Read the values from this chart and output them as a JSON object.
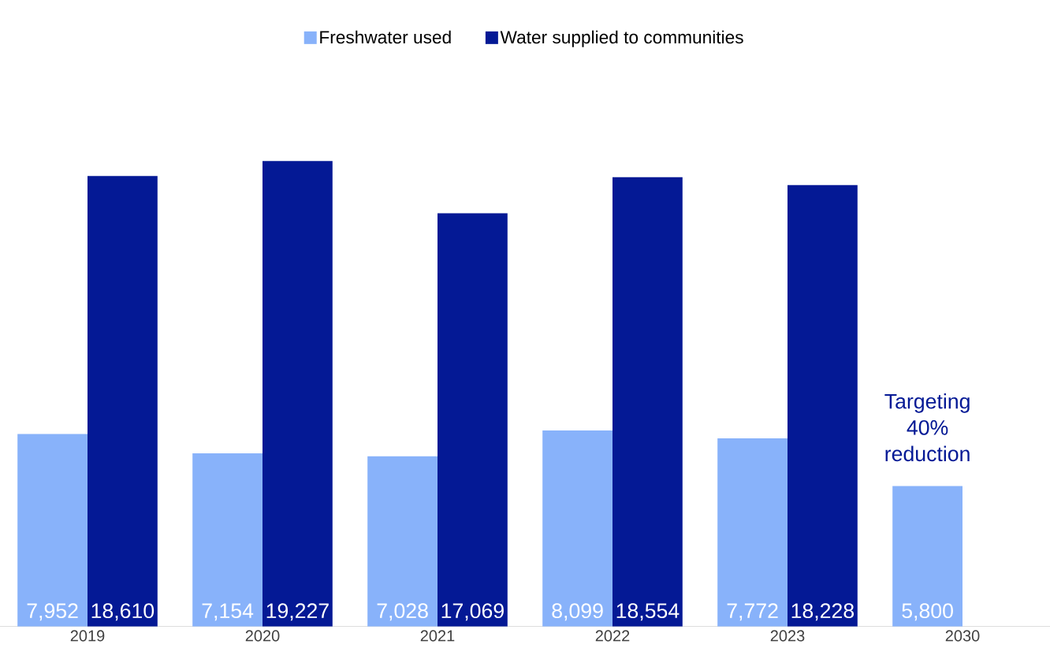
{
  "chart_data": {
    "type": "bar",
    "categories": [
      "2019",
      "2020",
      "2021",
      "2022",
      "2023",
      "2030"
    ],
    "series": [
      {
        "name": "Freshwater used",
        "color": "#88b2fa",
        "values": [
          7952,
          7154,
          7028,
          8099,
          7772,
          5800
        ],
        "value_labels": [
          "7,952",
          "7,154",
          "7,028",
          "8,099",
          "7,772",
          "5,800"
        ]
      },
      {
        "name": "Water supplied to communities",
        "color": "#041995",
        "values": [
          18610,
          19227,
          17069,
          18554,
          18228,
          null
        ],
        "value_labels": [
          "18,610",
          "19,227",
          "17,069",
          "18,554",
          "18,228",
          null
        ]
      }
    ],
    "annotations": [
      "Targeting 40% reduction"
    ],
    "legend": "top"
  }
}
